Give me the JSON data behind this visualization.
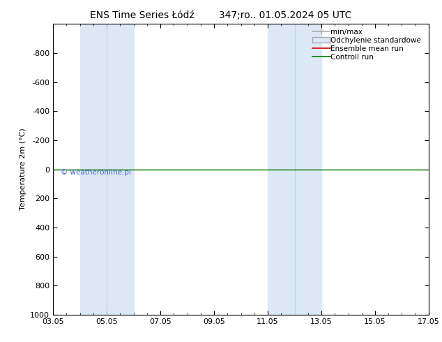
{
  "title_left": "ENS Time Series Łódź",
  "title_right": "347;ro.. 01.05.2024 05 UTC",
  "ylabel": "Temperature 2m (°C)",
  "xlim": [
    0,
    14
  ],
  "ylim": [
    1000,
    -1000
  ],
  "yticks": [
    -800,
    -600,
    -400,
    -200,
    0,
    200,
    400,
    600,
    800,
    1000
  ],
  "xtick_labels": [
    "03.05",
    "05.05",
    "07.05",
    "09.05",
    "11.05",
    "13.05",
    "15.05",
    "17.05"
  ],
  "xtick_positions": [
    0,
    2,
    4,
    6,
    8,
    10,
    12,
    14
  ],
  "blue_bands": [
    [
      1.0,
      2.0
    ],
    [
      2.0,
      3.0
    ],
    [
      8.0,
      9.0
    ],
    [
      9.0,
      10.0
    ]
  ],
  "blue_band_color": "#dce9f5",
  "band_divider_color": "#b8d4ed",
  "control_run_y": 0,
  "control_run_color": "#007700",
  "ensemble_mean_color": "#cc0000",
  "watermark": "© weatheronline.pl",
  "watermark_color": "#4466cc",
  "legend_items": [
    "min/max",
    "Odchylenie standardowe",
    "Ensemble mean run",
    "Controll run"
  ],
  "legend_line_colors": [
    "#aaaaaa",
    "#cccccc",
    "#cc0000",
    "#007700"
  ],
  "background_color": "#ffffff",
  "title_fontsize": 10,
  "axis_fontsize": 8,
  "tick_fontsize": 8,
  "legend_fontsize": 7.5
}
